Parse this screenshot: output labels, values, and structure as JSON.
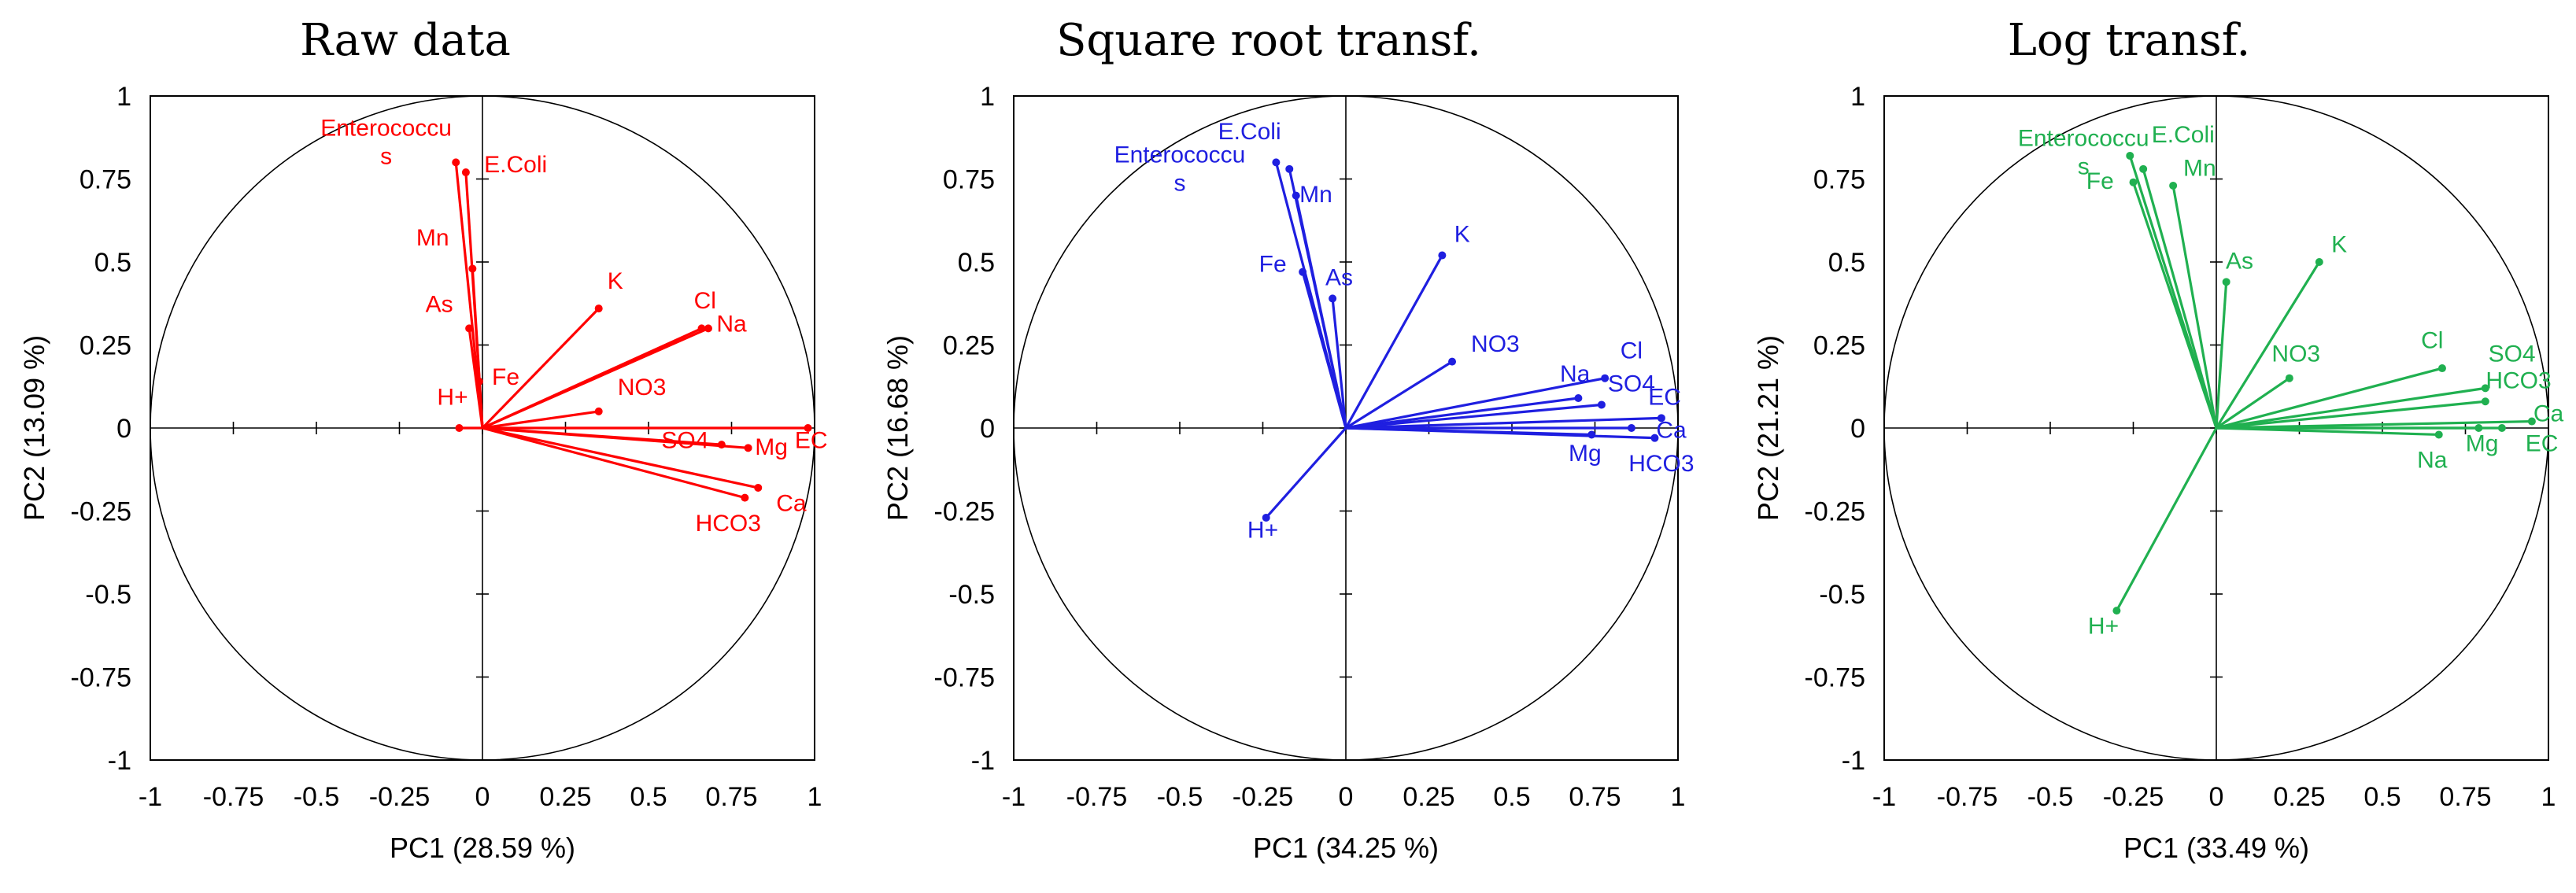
{
  "chart_data": [
    {
      "type": "scatter",
      "title": "Raw data",
      "xlabel": "PC1 (28.59 %)",
      "ylabel": "PC2 (13.09 %)",
      "xlim": [
        -1,
        1
      ],
      "ylim": [
        -1,
        1
      ],
      "xticks": [
        "-1",
        "-0.75",
        "-0.5",
        "-0.25",
        "0",
        "0.25",
        "0.5",
        "0.75",
        "1"
      ],
      "yticks": [
        "1",
        "0.75",
        "0.5",
        "0.25",
        "0",
        "-0.25",
        "-0.5",
        "-0.75",
        "-1"
      ],
      "color": "#ff0000",
      "grid": false,
      "unit_circle": true,
      "points": [
        {
          "name": "Enterococcus",
          "x": -0.08,
          "y": 0.8,
          "label": [
            "Enterococcu",
            "s"
          ],
          "lx": -0.29,
          "ly": 0.88
        },
        {
          "name": "E.Coli",
          "x": -0.05,
          "y": 0.77,
          "label": [
            "E.Coli"
          ],
          "lx": 0.1,
          "ly": 0.77
        },
        {
          "name": "Mn",
          "x": -0.03,
          "y": 0.48,
          "label": [
            "Mn"
          ],
          "lx": -0.15,
          "ly": 0.55
        },
        {
          "name": "As",
          "x": -0.04,
          "y": 0.3,
          "label": [
            "As"
          ],
          "lx": -0.13,
          "ly": 0.35
        },
        {
          "name": "Fe",
          "x": -0.01,
          "y": 0.14,
          "label": [
            "Fe"
          ],
          "lx": 0.07,
          "ly": 0.13
        },
        {
          "name": "H+",
          "x": -0.07,
          "y": 0.0,
          "label": [
            "H+"
          ],
          "lx": -0.09,
          "ly": 0.07
        },
        {
          "name": "K",
          "x": 0.35,
          "y": 0.36,
          "label": [
            "K"
          ],
          "lx": 0.4,
          "ly": 0.42
        },
        {
          "name": "Cl",
          "x": 0.66,
          "y": 0.3,
          "label": [
            "Cl"
          ],
          "lx": 0.67,
          "ly": 0.36
        },
        {
          "name": "Na",
          "x": 0.68,
          "y": 0.3,
          "label": [
            "Na"
          ],
          "lx": 0.75,
          "ly": 0.29
        },
        {
          "name": "NO3",
          "x": 0.35,
          "y": 0.05,
          "label": [
            "NO3"
          ],
          "lx": 0.48,
          "ly": 0.1
        },
        {
          "name": "SO4",
          "x": 0.72,
          "y": -0.05,
          "label": [
            "SO4"
          ],
          "lx": 0.61,
          "ly": -0.06
        },
        {
          "name": "Mg",
          "x": 0.8,
          "y": -0.06,
          "label": [
            "Mg"
          ],
          "lx": 0.87,
          "ly": -0.08
        },
        {
          "name": "EC",
          "x": 0.98,
          "y": 0.0,
          "label": [
            "EC"
          ],
          "lx": 0.99,
          "ly": -0.06
        },
        {
          "name": "Ca",
          "x": 0.83,
          "y": -0.18,
          "label": [
            "Ca"
          ],
          "lx": 0.93,
          "ly": -0.25
        },
        {
          "name": "HCO3",
          "x": 0.79,
          "y": -0.21,
          "label": [
            "HCO3"
          ],
          "lx": 0.74,
          "ly": -0.31
        }
      ]
    },
    {
      "type": "scatter",
      "title": "Square root transf.",
      "xlabel": "PC1 (34.25 %)",
      "ylabel": "PC2 (16.68 %)",
      "xlim": [
        -1,
        1
      ],
      "ylim": [
        -1,
        1
      ],
      "xticks": [
        "-1",
        "-0.75",
        "-0.5",
        "-0.25",
        "0",
        "0.25",
        "0.5",
        "0.75",
        "1"
      ],
      "yticks": [
        "1",
        "0.75",
        "0.5",
        "0.25",
        "0",
        "-0.25",
        "-0.5",
        "-0.75",
        "-1"
      ],
      "color": "#1f1fe0",
      "grid": false,
      "unit_circle": true,
      "points": [
        {
          "name": "Enterococcus",
          "x": -0.21,
          "y": 0.8,
          "label": [
            "Enterococcu",
            "s"
          ],
          "lx": -0.5,
          "ly": 0.8
        },
        {
          "name": "E.Coli",
          "x": -0.17,
          "y": 0.78,
          "label": [
            "E.Coli"
          ],
          "lx": -0.29,
          "ly": 0.87
        },
        {
          "name": "Mn",
          "x": -0.15,
          "y": 0.7,
          "label": [
            "Mn"
          ],
          "lx": -0.09,
          "ly": 0.68
        },
        {
          "name": "Fe",
          "x": -0.13,
          "y": 0.47,
          "label": [
            "Fe"
          ],
          "lx": -0.22,
          "ly": 0.47
        },
        {
          "name": "As",
          "x": -0.04,
          "y": 0.39,
          "label": [
            "As"
          ],
          "lx": -0.02,
          "ly": 0.43
        },
        {
          "name": "K",
          "x": 0.29,
          "y": 0.52,
          "label": [
            "K"
          ],
          "lx": 0.35,
          "ly": 0.56
        },
        {
          "name": "NO3",
          "x": 0.32,
          "y": 0.2,
          "label": [
            "NO3"
          ],
          "lx": 0.45,
          "ly": 0.23
        },
        {
          "name": "Na",
          "x": 0.7,
          "y": 0.09,
          "label": [
            "Na"
          ],
          "lx": 0.69,
          "ly": 0.14
        },
        {
          "name": "Cl",
          "x": 0.78,
          "y": 0.15,
          "label": [
            "Cl"
          ],
          "lx": 0.86,
          "ly": 0.21
        },
        {
          "name": "SO4",
          "x": 0.77,
          "y": 0.07,
          "label": [
            "SO4"
          ],
          "lx": 0.86,
          "ly": 0.11
        },
        {
          "name": "EC",
          "x": 0.95,
          "y": 0.03,
          "label": [
            "EC"
          ],
          "lx": 0.96,
          "ly": 0.07
        },
        {
          "name": "Ca",
          "x": 0.93,
          "y": -0.03,
          "label": [
            "Ca"
          ],
          "lx": 0.98,
          "ly": -0.03
        },
        {
          "name": "Mg",
          "x": 0.74,
          "y": -0.02,
          "label": [
            "Mg"
          ],
          "lx": 0.72,
          "ly": -0.1
        },
        {
          "name": "HCO3",
          "x": 0.86,
          "y": 0.0,
          "label": [
            "HCO3"
          ],
          "lx": 0.95,
          "ly": -0.13
        },
        {
          "name": "H+",
          "x": -0.24,
          "y": -0.27,
          "label": [
            "H+"
          ],
          "lx": -0.25,
          "ly": -0.33
        }
      ]
    },
    {
      "type": "scatter",
      "title": "Log transf.",
      "xlabel": "PC1 (33.49 %)",
      "ylabel": "PC2 (21.21 %)",
      "xlim": [
        -1,
        1
      ],
      "ylim": [
        -1,
        1
      ],
      "xticks": [
        "-1",
        "-0.75",
        "-0.5",
        "-0.25",
        "0",
        "0.25",
        "0.5",
        "0.75",
        "1"
      ],
      "yticks": [
        "1",
        "0.75",
        "0.5",
        "0.25",
        "0",
        "-0.25",
        "-0.5",
        "-0.75",
        "-1"
      ],
      "color": "#20b050",
      "grid": false,
      "unit_circle": true,
      "points": [
        {
          "name": "Enterococcus",
          "x": -0.26,
          "y": 0.82,
          "label": [
            "Enterococcu",
            "s"
          ],
          "lx": -0.4,
          "ly": 0.85
        },
        {
          "name": "E.Coli",
          "x": -0.22,
          "y": 0.78,
          "label": [
            "E.Coli"
          ],
          "lx": -0.1,
          "ly": 0.86
        },
        {
          "name": "Fe",
          "x": -0.25,
          "y": 0.74,
          "label": [
            "Fe"
          ],
          "lx": -0.35,
          "ly": 0.72
        },
        {
          "name": "Mn",
          "x": -0.13,
          "y": 0.73,
          "label": [
            "Mn"
          ],
          "lx": -0.05,
          "ly": 0.76
        },
        {
          "name": "As",
          "x": 0.03,
          "y": 0.44,
          "label": [
            "As"
          ],
          "lx": 0.07,
          "ly": 0.48
        },
        {
          "name": "K",
          "x": 0.31,
          "y": 0.5,
          "label": [
            "K"
          ],
          "lx": 0.37,
          "ly": 0.53
        },
        {
          "name": "NO3",
          "x": 0.22,
          "y": 0.15,
          "label": [
            "NO3"
          ],
          "lx": 0.24,
          "ly": 0.2
        },
        {
          "name": "Cl",
          "x": 0.68,
          "y": 0.18,
          "label": [
            "Cl"
          ],
          "lx": 0.65,
          "ly": 0.24
        },
        {
          "name": "SO4",
          "x": 0.81,
          "y": 0.12,
          "label": [
            "SO4"
          ],
          "lx": 0.89,
          "ly": 0.2
        },
        {
          "name": "HCO3",
          "x": 0.81,
          "y": 0.08,
          "label": [
            "HCO3"
          ],
          "lx": 0.91,
          "ly": 0.12
        },
        {
          "name": "Ca",
          "x": 0.95,
          "y": 0.02,
          "label": [
            "Ca"
          ],
          "lx": 1.0,
          "ly": 0.02
        },
        {
          "name": "Mg",
          "x": 0.79,
          "y": 0.0,
          "label": [
            "Mg"
          ],
          "lx": 0.8,
          "ly": -0.07
        },
        {
          "name": "EC",
          "x": 0.86,
          "y": 0.0,
          "label": [
            "EC"
          ],
          "lx": 0.98,
          "ly": -0.07
        },
        {
          "name": "Na",
          "x": 0.67,
          "y": -0.02,
          "label": [
            "Na"
          ],
          "lx": 0.65,
          "ly": -0.12
        },
        {
          "name": "H+",
          "x": -0.3,
          "y": -0.55,
          "label": [
            "H+"
          ],
          "lx": -0.34,
          "ly": -0.62
        }
      ]
    }
  ]
}
